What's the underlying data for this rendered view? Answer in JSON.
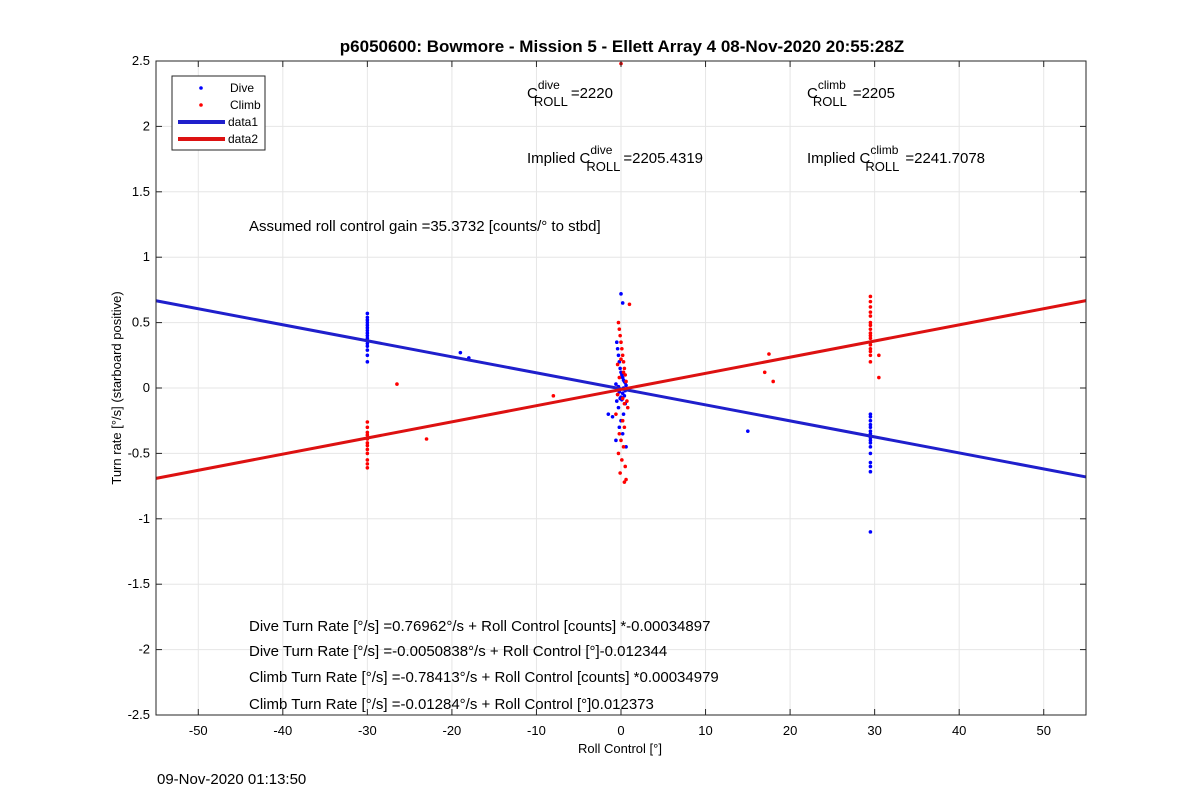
{
  "footer_timestamp": "09-Nov-2020 01:13:50",
  "colors": {
    "dive": "#0000ff",
    "climb": "#ff0000",
    "dive_line": "#1f1fcc",
    "climb_line": "#dd1111"
  },
  "chart_data": {
    "type": "scatter",
    "title": "p6050600: Bowmore - Mission 5 - Ellett Array 4 08-Nov-2020 20:55:28Z",
    "xlabel": "Roll Control [°]",
    "ylabel": "Turn rate [°/s] (starboard positive)",
    "xlim": [
      -55,
      55
    ],
    "ylim": [
      -2.5,
      2.5
    ],
    "xticks": [
      -50,
      -40,
      -30,
      -20,
      -10,
      0,
      10,
      20,
      30,
      40,
      50
    ],
    "yticks": [
      -2.5,
      -2,
      -1.5,
      -1,
      -0.5,
      0,
      0.5,
      1,
      1.5,
      2,
      2.5
    ],
    "grid": true,
    "legend_position": "top-left",
    "legend": [
      "Dive",
      "Climb",
      "data1",
      "data2"
    ],
    "annotations": {
      "c_roll_dive": {
        "prefix": "C",
        "sup": "dive",
        "sub": "ROLL",
        "value": "=2220"
      },
      "c_roll_climb": {
        "prefix": "C",
        "sup": "climb",
        "sub": "ROLL",
        "value": "=2205"
      },
      "implied_dive": {
        "prefix": "Implied C",
        "sup": "dive",
        "sub": "ROLL",
        "value": "=2205.4319"
      },
      "implied_climb": {
        "prefix": "Implied C",
        "sup": "climb",
        "sub": "ROLL",
        "value": "=2241.7078"
      },
      "gain": "Assumed roll control gain =35.3732 [counts/° to stbd]",
      "eq1": "Dive Turn Rate [°/s] =0.76962°/s + Roll Control [counts] *-0.00034897",
      "eq2": "Dive Turn Rate [°/s] =-0.0050838°/s + Roll Control [°]-0.012344",
      "eq3": "Climb Turn Rate [°/s] =-0.78413°/s + Roll Control [counts] *0.00034979",
      "eq4": "Climb Turn Rate [°/s] =-0.01284°/s + Roll Control [°]0.012373"
    },
    "series": [
      {
        "name": "Dive",
        "x": [
          -30,
          -30,
          -30,
          -30,
          -30,
          -30,
          -30,
          -30,
          -30,
          -30,
          -30,
          -30,
          -30,
          -30,
          -30,
          -30,
          -19,
          -18,
          -0.5,
          -0.4,
          -0.3,
          -0.2,
          -0.1,
          0,
          0.1,
          0.2,
          0.3,
          0.4,
          0.5,
          -0.6,
          0.6,
          -0.3,
          0.3,
          -0.5,
          0.5,
          -0.2,
          0.2,
          -0.4,
          0.4,
          0,
          -0.1,
          0.1,
          -0.5,
          0.5,
          -0.3,
          0.3,
          0,
          -0.2,
          0.2,
          -0.6,
          0.6,
          -1,
          -1.5,
          0,
          0.2,
          15,
          29.5,
          29.5,
          29.5,
          29.5,
          29.5,
          29.5,
          29.5,
          29.5,
          29.5,
          29.5,
          29.5,
          29.5,
          29.5,
          29.5,
          29.5,
          29.5
        ],
        "y": [
          0.57,
          0.54,
          0.52,
          0.5,
          0.48,
          0.46,
          0.44,
          0.42,
          0.4,
          0.38,
          0.36,
          0.34,
          0.32,
          0.29,
          0.25,
          0.2,
          0.27,
          0.23,
          0.35,
          0.3,
          0.25,
          0.2,
          0.15,
          0.12,
          0.1,
          0.08,
          0.06,
          0.05,
          0.04,
          0.03,
          0.02,
          0.01,
          0,
          -0.01,
          -0.02,
          -0.03,
          -0.04,
          -0.05,
          -0.06,
          -0.07,
          -0.08,
          -0.09,
          -0.1,
          -0.12,
          -0.15,
          -0.2,
          -0.25,
          -0.3,
          -0.35,
          -0.4,
          -0.45,
          -0.22,
          -0.2,
          0.72,
          0.65,
          -0.33,
          -0.2,
          -0.22,
          -0.25,
          -0.28,
          -0.3,
          -0.33,
          -0.35,
          -0.38,
          -0.4,
          -0.42,
          -0.45,
          -0.5,
          -0.57,
          -0.6,
          -0.64,
          -1.1
        ]
      },
      {
        "name": "Climb",
        "x": [
          -30,
          -30,
          -30,
          -30,
          -30,
          -30,
          -30,
          -30,
          -30,
          -30,
          -30,
          -30,
          -26.5,
          -23,
          -8,
          -0.3,
          -0.2,
          -0.1,
          0,
          0.1,
          0.2,
          0.3,
          0.4,
          0.5,
          0.6,
          -0.5,
          -0.4,
          0.7,
          0.8,
          -0.6,
          0.2,
          0.4,
          -0.2,
          0,
          0.3,
          -0.3,
          0.1,
          0.5,
          -0.1,
          0.6,
          -0.4,
          0,
          0.3,
          0.2,
          -0.2,
          0.4,
          1,
          0,
          0.4,
          17,
          17.5,
          18,
          29.5,
          29.5,
          29.5,
          29.5,
          29.5,
          29.5,
          29.5,
          29.5,
          29.5,
          29.5,
          29.5,
          29.5,
          29.5,
          29.5,
          29.5,
          29.5,
          29.5,
          30.5,
          30.5
        ],
        "y": [
          -0.26,
          -0.3,
          -0.34,
          -0.36,
          -0.39,
          -0.42,
          -0.44,
          -0.47,
          -0.5,
          -0.55,
          -0.58,
          -0.61,
          0.03,
          -0.39,
          -0.06,
          0.5,
          0.45,
          0.4,
          0.35,
          0.3,
          0.25,
          0.2,
          0.15,
          0.1,
          0.05,
          0,
          -0.05,
          -0.1,
          -0.15,
          -0.2,
          -0.25,
          -0.3,
          -0.35,
          -0.4,
          -0.45,
          -0.5,
          -0.55,
          -0.6,
          -0.65,
          -0.7,
          0.18,
          0.22,
          0.12,
          -0.08,
          0.08,
          -0.12,
          0.64,
          2.48,
          -0.72,
          0.12,
          0.26,
          0.05,
          0.2,
          0.25,
          0.28,
          0.3,
          0.33,
          0.35,
          0.38,
          0.4,
          0.42,
          0.45,
          0.48,
          0.5,
          0.55,
          0.58,
          0.62,
          0.66,
          0.7,
          0.25,
          0.08
        ]
      }
    ],
    "fit_lines": [
      {
        "name": "data1",
        "x": [
          -55,
          55
        ],
        "y": [
          0.667,
          -0.68
        ]
      },
      {
        "name": "data2",
        "x": [
          -55,
          55
        ],
        "y": [
          -0.691,
          0.668
        ]
      }
    ]
  }
}
